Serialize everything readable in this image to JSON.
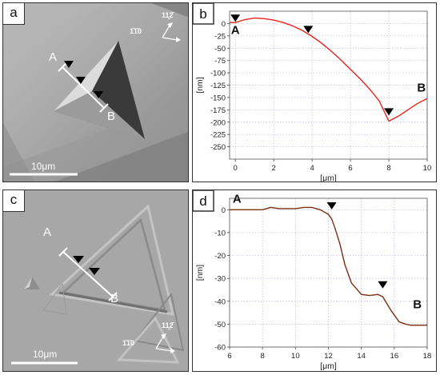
{
  "panels": {
    "a": {
      "label": "a",
      "scale_bar": "10μm",
      "line_start": "A",
      "line_end": "B",
      "dir_1": "11̰2̄",
      "dir_2": "1̄1̄0"
    },
    "c": {
      "label": "c",
      "scale_bar": "10μm",
      "line_start": "A",
      "line_end": "B",
      "dir_1": "11̰2̄",
      "dir_2": "1̄1̄0"
    }
  },
  "chart_data": [
    {
      "panel_label": "b",
      "type": "line",
      "xlabel": "[μm]",
      "ylabel": "[nm]",
      "xlim": [
        -0.3,
        10
      ],
      "ylim": [
        -275,
        25
      ],
      "xticks": [
        0,
        2,
        4,
        6,
        8,
        10
      ],
      "yticks": [
        0,
        -25,
        -50,
        -75,
        -100,
        -125,
        -150,
        -175,
        -200,
        -225,
        -250
      ],
      "grid": true,
      "series": [
        {
          "color": "#e8231c",
          "x": [
            -0.3,
            0.0,
            0.5,
            1.0,
            1.5,
            2.0,
            2.5,
            3.0,
            3.5,
            4.0,
            4.5,
            5.0,
            5.5,
            6.0,
            6.5,
            7.0,
            7.5,
            8.0,
            8.5,
            9.0,
            9.5,
            10.0
          ],
          "y": [
            2,
            2,
            8,
            11,
            10,
            7,
            2,
            -5,
            -14,
            -26,
            -40,
            -56,
            -74,
            -93,
            -112,
            -133,
            -157,
            -198,
            -188,
            -175,
            -162,
            -152
          ]
        }
      ],
      "annotations": [
        {
          "text": "A",
          "x": 0.0,
          "y": -21
        },
        {
          "text": "B",
          "x": 9.7,
          "y": -138
        }
      ],
      "markers": [
        {
          "x": 0.0,
          "y": 10
        },
        {
          "x": 3.8,
          "y": -13
        },
        {
          "x": 8.0,
          "y": -180
        }
      ]
    },
    {
      "panel_label": "d",
      "type": "line",
      "xlabel": "[μm]",
      "ylabel": "[nm]",
      "xlim": [
        6,
        18
      ],
      "ylim": [
        -60,
        5
      ],
      "xticks": [
        6,
        8,
        10,
        12,
        14,
        16,
        18
      ],
      "yticks": [
        0,
        -10,
        -20,
        -30,
        -40,
        -50,
        -60
      ],
      "grid": true,
      "series": [
        {
          "color": "#7a2e12",
          "x": [
            6.0,
            7.0,
            8.0,
            8.5,
            9.0,
            10.0,
            10.5,
            11.0,
            11.5,
            12.0,
            12.2,
            12.4,
            12.7,
            13.0,
            13.4,
            14.0,
            14.5,
            15.0,
            15.3,
            15.8,
            16.3,
            16.7,
            17.0,
            17.5,
            18.0
          ],
          "y": [
            0,
            0,
            0,
            1,
            0.5,
            0.5,
            1,
            1,
            0,
            -2,
            -4,
            -8,
            -15,
            -24,
            -32,
            -37,
            -37.5,
            -37,
            -38,
            -44,
            -49,
            -50,
            -50.5,
            -50.5,
            -50.5
          ]
        }
      ],
      "annotations": [
        {
          "text": "A",
          "x": 6.45,
          "y": 3
        },
        {
          "text": "B",
          "x": 17.4,
          "y": -43
        }
      ],
      "markers": [
        {
          "x": 12.2,
          "y": 1.5
        },
        {
          "x": 15.3,
          "y": -33
        }
      ]
    }
  ]
}
